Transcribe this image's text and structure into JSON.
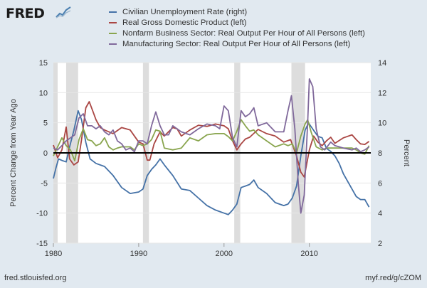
{
  "header": {
    "logo_text": "FRED",
    "logo_mark_icon": "line-graph-icon"
  },
  "footer": {
    "source": "fred.stlouisfed.org",
    "short_url": "myf.red/g/cZOM"
  },
  "colors": {
    "background": "#e1e9f0",
    "plot_background": "#ffffff",
    "recession": "#dddddd",
    "unemployment": "#4572a7",
    "gdp": "#aa4643",
    "nonfarm": "#89a54e",
    "manufacturing": "#80699b",
    "zero_line": "#000000"
  },
  "chart_data": {
    "type": "line",
    "xlabel": "",
    "ylabel_left": "Percent Change from Year Ago",
    "ylabel_right": "Percent",
    "xlim": [
      1980,
      2017.2
    ],
    "ylim_left": [
      -15,
      15
    ],
    "ylim_right": [
      2,
      14
    ],
    "x_ticks": [
      1980,
      1990,
      2000,
      2010
    ],
    "y_ticks_left": [
      -15,
      -10,
      -5,
      0,
      5,
      10,
      15
    ],
    "y_ticks_right": [
      2,
      4,
      6,
      8,
      10,
      12,
      14
    ],
    "grid": "horizontal",
    "legend_position": "top",
    "recessions": [
      [
        1980.0,
        1980.5
      ],
      [
        1981.5,
        1982.9
      ],
      [
        1990.5,
        1991.2
      ],
      [
        2001.2,
        2001.9
      ],
      [
        2007.9,
        2009.5
      ]
    ],
    "series": [
      {
        "name": "Civilian Unemployment Rate (right)",
        "axis": "right",
        "color": "#4572a7",
        "points": [
          [
            1980.0,
            6.3
          ],
          [
            1980.3,
            7.0
          ],
          [
            1980.6,
            7.6
          ],
          [
            1981.0,
            7.5
          ],
          [
            1981.5,
            7.4
          ],
          [
            1981.9,
            8.4
          ],
          [
            1982.4,
            9.5
          ],
          [
            1982.9,
            10.8
          ],
          [
            1983.3,
            10.2
          ],
          [
            1983.8,
            8.7
          ],
          [
            1984.3,
            7.6
          ],
          [
            1985.0,
            7.3
          ],
          [
            1986.0,
            7.1
          ],
          [
            1987.0,
            6.5
          ],
          [
            1988.0,
            5.7
          ],
          [
            1989.0,
            5.3
          ],
          [
            1990.0,
            5.4
          ],
          [
            1990.5,
            5.6
          ],
          [
            1991.0,
            6.5
          ],
          [
            1991.5,
            6.9
          ],
          [
            1992.0,
            7.2
          ],
          [
            1992.5,
            7.6
          ],
          [
            1993.0,
            7.2
          ],
          [
            1994.0,
            6.5
          ],
          [
            1995.0,
            5.6
          ],
          [
            1996.0,
            5.5
          ],
          [
            1997.0,
            5.0
          ],
          [
            1998.0,
            4.5
          ],
          [
            1999.0,
            4.2
          ],
          [
            2000.0,
            4.0
          ],
          [
            2000.5,
            3.9
          ],
          [
            2001.0,
            4.2
          ],
          [
            2001.5,
            4.6
          ],
          [
            2002.0,
            5.7
          ],
          [
            2002.5,
            5.8
          ],
          [
            2003.0,
            5.9
          ],
          [
            2003.5,
            6.2
          ],
          [
            2004.0,
            5.7
          ],
          [
            2005.0,
            5.3
          ],
          [
            2006.0,
            4.7
          ],
          [
            2007.0,
            4.5
          ],
          [
            2007.5,
            4.6
          ],
          [
            2008.0,
            5.0
          ],
          [
            2008.5,
            5.8
          ],
          [
            2009.0,
            7.8
          ],
          [
            2009.5,
            9.5
          ],
          [
            2009.9,
            10.0
          ],
          [
            2010.5,
            9.5
          ],
          [
            2011.0,
            9.1
          ],
          [
            2011.5,
            9.0
          ],
          [
            2012.0,
            8.3
          ],
          [
            2012.5,
            8.1
          ],
          [
            2013.0,
            7.8
          ],
          [
            2013.5,
            7.3
          ],
          [
            2014.0,
            6.6
          ],
          [
            2014.5,
            6.1
          ],
          [
            2015.0,
            5.6
          ],
          [
            2015.5,
            5.1
          ],
          [
            2016.0,
            4.9
          ],
          [
            2016.5,
            4.9
          ],
          [
            2017.0,
            4.4
          ]
        ]
      },
      {
        "name": "Real Gross Domestic Product (left)",
        "axis": "left",
        "color": "#aa4643",
        "points": [
          [
            1980.0,
            1.3
          ],
          [
            1980.5,
            -0.8
          ],
          [
            1981.0,
            0.5
          ],
          [
            1981.5,
            4.3
          ],
          [
            1981.9,
            -1.0
          ],
          [
            1982.4,
            -2.0
          ],
          [
            1982.9,
            -1.5
          ],
          [
            1983.3,
            2.2
          ],
          [
            1983.8,
            7.5
          ],
          [
            1984.2,
            8.5
          ],
          [
            1984.6,
            7.0
          ],
          [
            1985.0,
            5.5
          ],
          [
            1985.5,
            4.2
          ],
          [
            1986.0,
            3.8
          ],
          [
            1987.0,
            3.2
          ],
          [
            1988.0,
            4.2
          ],
          [
            1989.0,
            3.8
          ],
          [
            1990.0,
            1.8
          ],
          [
            1990.5,
            1.5
          ],
          [
            1991.0,
            -1.2
          ],
          [
            1991.3,
            -1.2
          ],
          [
            1991.8,
            1.5
          ],
          [
            1992.5,
            3.5
          ],
          [
            1993.0,
            2.8
          ],
          [
            1994.0,
            4.2
          ],
          [
            1994.5,
            4.0
          ],
          [
            1995.0,
            2.8
          ],
          [
            1996.0,
            3.8
          ],
          [
            1997.0,
            4.6
          ],
          [
            1998.0,
            4.4
          ],
          [
            1999.0,
            4.8
          ],
          [
            2000.0,
            4.5
          ],
          [
            2000.5,
            4.0
          ],
          [
            2001.0,
            2.0
          ],
          [
            2001.5,
            0.5
          ],
          [
            2002.0,
            1.5
          ],
          [
            2002.5,
            2.3
          ],
          [
            2003.0,
            2.6
          ],
          [
            2004.0,
            3.9
          ],
          [
            2005.0,
            3.2
          ],
          [
            2006.0,
            2.8
          ],
          [
            2007.0,
            1.8
          ],
          [
            2007.8,
            2.2
          ],
          [
            2008.5,
            -0.5
          ],
          [
            2009.0,
            -3.2
          ],
          [
            2009.4,
            -4.0
          ],
          [
            2010.0,
            0.5
          ],
          [
            2010.5,
            2.8
          ],
          [
            2011.0,
            1.8
          ],
          [
            2011.5,
            1.2
          ],
          [
            2012.0,
            2.0
          ],
          [
            2012.5,
            2.6
          ],
          [
            2013.0,
            1.6
          ],
          [
            2014.0,
            2.5
          ],
          [
            2015.0,
            3.0
          ],
          [
            2015.5,
            2.2
          ],
          [
            2016.0,
            1.5
          ],
          [
            2016.5,
            1.4
          ],
          [
            2017.0,
            1.9
          ]
        ]
      },
      {
        "name": "Nonfarm Business Sector: Real Output Per Hour of All Persons (left)",
        "axis": "left",
        "color": "#89a54e",
        "points": [
          [
            1980.0,
            -0.5
          ],
          [
            1980.5,
            1.0
          ],
          [
            1981.0,
            2.5
          ],
          [
            1981.5,
            1.2
          ],
          [
            1982.0,
            0.5
          ],
          [
            1982.5,
            -1.3
          ],
          [
            1983.0,
            2.2
          ],
          [
            1983.5,
            4.0
          ],
          [
            1984.0,
            2.2
          ],
          [
            1984.5,
            2.0
          ],
          [
            1985.0,
            1.2
          ],
          [
            1985.5,
            1.5
          ],
          [
            1986.0,
            2.5
          ],
          [
            1986.5,
            1.0
          ],
          [
            1987.0,
            0.5
          ],
          [
            1987.5,
            0.8
          ],
          [
            1988.0,
            1.0
          ],
          [
            1989.0,
            1.0
          ],
          [
            1989.5,
            0.5
          ],
          [
            1990.0,
            1.5
          ],
          [
            1990.5,
            1.2
          ],
          [
            1991.0,
            1.5
          ],
          [
            1991.5,
            2.2
          ],
          [
            1992.0,
            3.8
          ],
          [
            1992.5,
            3.6
          ],
          [
            1993.0,
            0.8
          ],
          [
            1994.0,
            0.5
          ],
          [
            1995.0,
            0.8
          ],
          [
            1996.0,
            2.5
          ],
          [
            1997.0,
            2.0
          ],
          [
            1998.0,
            3.0
          ],
          [
            1999.0,
            3.2
          ],
          [
            2000.0,
            3.2
          ],
          [
            2000.5,
            2.7
          ],
          [
            2001.0,
            2.0
          ],
          [
            2001.5,
            3.6
          ],
          [
            2002.0,
            5.5
          ],
          [
            2002.5,
            4.5
          ],
          [
            2003.0,
            3.6
          ],
          [
            2003.5,
            3.8
          ],
          [
            2004.0,
            3.0
          ],
          [
            2005.0,
            2.0
          ],
          [
            2006.0,
            1.0
          ],
          [
            2007.0,
            1.5
          ],
          [
            2007.5,
            1.2
          ],
          [
            2008.0,
            1.5
          ],
          [
            2008.5,
            0.0
          ],
          [
            2009.0,
            2.8
          ],
          [
            2009.5,
            4.8
          ],
          [
            2009.8,
            5.5
          ],
          [
            2010.2,
            3.5
          ],
          [
            2010.8,
            1.0
          ],
          [
            2011.5,
            0.5
          ],
          [
            2012.0,
            0.8
          ],
          [
            2013.0,
            0.8
          ],
          [
            2014.0,
            0.8
          ],
          [
            2015.0,
            0.8
          ],
          [
            2015.5,
            0.5
          ],
          [
            2016.0,
            0.0
          ],
          [
            2016.5,
            -0.2
          ],
          [
            2017.0,
            1.2
          ]
        ]
      },
      {
        "name": "Manufacturing Sector: Real Output Per Hour of All Persons (left)",
        "axis": "left",
        "color": "#80699b",
        "points": [
          [
            1980.0,
            0.8
          ],
          [
            1980.5,
            0.5
          ],
          [
            1981.0,
            1.2
          ],
          [
            1981.5,
            2.0
          ],
          [
            1982.0,
            2.5
          ],
          [
            1982.5,
            3.0
          ],
          [
            1983.0,
            5.8
          ],
          [
            1983.5,
            6.5
          ],
          [
            1984.0,
            4.5
          ],
          [
            1984.5,
            4.5
          ],
          [
            1985.0,
            4.0
          ],
          [
            1985.5,
            4.5
          ],
          [
            1986.0,
            3.5
          ],
          [
            1986.5,
            3.0
          ],
          [
            1987.0,
            3.8
          ],
          [
            1987.5,
            2.0
          ],
          [
            1988.0,
            1.5
          ],
          [
            1988.5,
            0.5
          ],
          [
            1989.0,
            0.8
          ],
          [
            1989.5,
            0.2
          ],
          [
            1990.0,
            2.0
          ],
          [
            1990.5,
            2.0
          ],
          [
            1991.0,
            1.5
          ],
          [
            1991.5,
            4.5
          ],
          [
            1992.0,
            6.8
          ],
          [
            1992.5,
            4.5
          ],
          [
            1993.0,
            3.0
          ],
          [
            1993.5,
            3.0
          ],
          [
            1994.0,
            4.5
          ],
          [
            1995.0,
            3.5
          ],
          [
            1996.0,
            3.0
          ],
          [
            1997.0,
            4.0
          ],
          [
            1998.0,
            4.8
          ],
          [
            1999.0,
            4.5
          ],
          [
            1999.5,
            4.0
          ],
          [
            2000.0,
            7.8
          ],
          [
            2000.5,
            7.0
          ],
          [
            2001.0,
            2.5
          ],
          [
            2001.5,
            1.0
          ],
          [
            2002.0,
            7.0
          ],
          [
            2002.5,
            6.0
          ],
          [
            2003.0,
            6.5
          ],
          [
            2003.5,
            7.5
          ],
          [
            2004.0,
            4.5
          ],
          [
            2005.0,
            5.0
          ],
          [
            2006.0,
            3.5
          ],
          [
            2007.0,
            3.5
          ],
          [
            2007.5,
            7.0
          ],
          [
            2007.9,
            9.5
          ],
          [
            2008.3,
            4.0
          ],
          [
            2008.7,
            -5.0
          ],
          [
            2009.0,
            -10.0
          ],
          [
            2009.4,
            -7.0
          ],
          [
            2009.8,
            5.0
          ],
          [
            2010.0,
            12.3
          ],
          [
            2010.4,
            11.0
          ],
          [
            2010.8,
            4.0
          ],
          [
            2011.3,
            1.0
          ],
          [
            2011.8,
            0.5
          ],
          [
            2012.5,
            1.8
          ],
          [
            2013.0,
            1.2
          ],
          [
            2014.0,
            0.8
          ],
          [
            2015.0,
            0.5
          ],
          [
            2015.5,
            0.8
          ],
          [
            2016.0,
            0.2
          ],
          [
            2016.5,
            0.5
          ],
          [
            2017.0,
            1.0
          ]
        ]
      }
    ]
  }
}
